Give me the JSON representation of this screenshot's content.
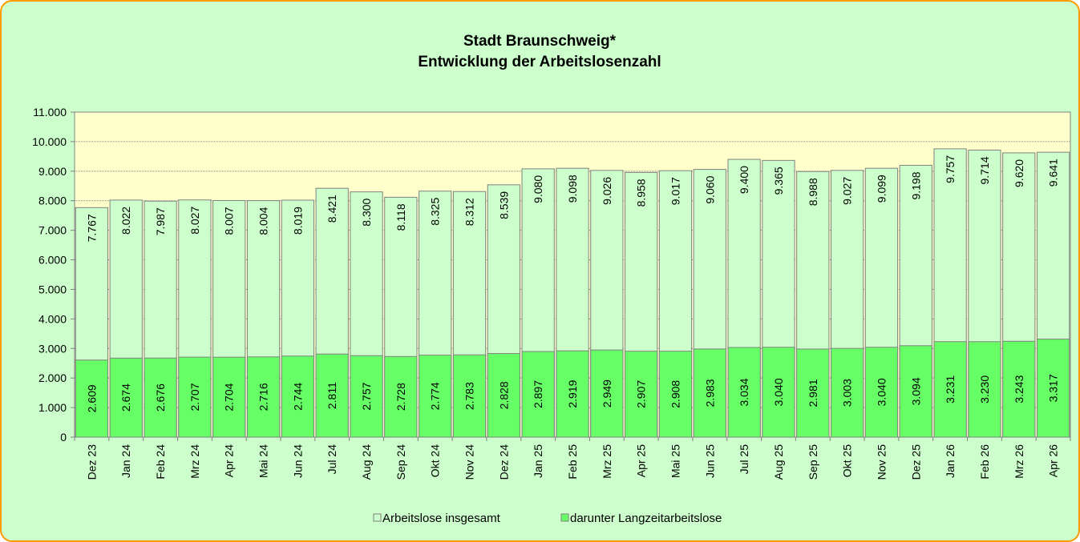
{
  "chart_data": {
    "type": "bar",
    "title": "Stadt Braunschweig*",
    "subtitle": "Entwicklung der Arbeitslosenzahl",
    "categories": [
      "Dez 23",
      "Jan 24",
      "Feb 24",
      "Mrz 24",
      "Apr 24",
      "Mai 24",
      "Jun 24",
      "Jul 24",
      "Aug 24",
      "Sep 24",
      "Okt 24",
      "Nov 24",
      "Dez 24",
      "Jan 25",
      "Feb 25",
      "Mrz 25",
      "Apr 25",
      "Mai 25",
      "Jun 25",
      "Jul 25",
      "Aug 25",
      "Sep 25",
      "Okt 25",
      "Nov 25",
      "Dez 25",
      "Jan 26",
      "Feb 26",
      "Mrz 26",
      "Apr 26"
    ],
    "series": [
      {
        "name": "Arbeitslose insgesamt",
        "color": "#ccffcc",
        "values": [
          7767,
          8022,
          7987,
          8027,
          8007,
          8004,
          8019,
          8421,
          8300,
          8118,
          8325,
          8312,
          8539,
          9080,
          9098,
          9026,
          8958,
          9017,
          9060,
          9400,
          9365,
          8988,
          9027,
          9099,
          9198,
          9757,
          9714,
          9620,
          9641
        ],
        "value_labels": [
          "7.767",
          "8.022",
          "7.987",
          "8.027",
          "8.007",
          "8.004",
          "8.019",
          "8.421",
          "8.300",
          "8.118",
          "8.325",
          "8.312",
          "8.539",
          "9.080",
          "9.098",
          "9.026",
          "8.958",
          "9.017",
          "9.060",
          "9.400",
          "9.365",
          "8.988",
          "9.027",
          "9.099",
          "9.198",
          "9.757",
          "9.714",
          "9.620",
          "9.641"
        ]
      },
      {
        "name": "darunter Langzeitarbeitslose",
        "color": "#66ff66",
        "values": [
          2609,
          2674,
          2676,
          2707,
          2704,
          2716,
          2744,
          2811,
          2757,
          2728,
          2774,
          2783,
          2828,
          2897,
          2919,
          2949,
          2907,
          2908,
          2983,
          3034,
          3040,
          2981,
          3003,
          3040,
          3094,
          3231,
          3230,
          3243,
          3317
        ],
        "value_labels": [
          "2.609",
          "2.674",
          "2.676",
          "2.707",
          "2.704",
          "2.716",
          "2.744",
          "2.811",
          "2.757",
          "2.728",
          "2.774",
          "2.783",
          "2.828",
          "2.897",
          "2.919",
          "2.949",
          "2.907",
          "2.908",
          "2.983",
          "3.034",
          "3.040",
          "2.981",
          "3.003",
          "3.040",
          "3.094",
          "3.231",
          "3.230",
          "3.243",
          "3.317"
        ]
      }
    ],
    "ylim": [
      0,
      11000
    ],
    "yticks": [
      0,
      {
        "value": 1000,
        "label": "1.000"
      },
      {
        "value": 2000,
        "label": "2.000"
      },
      {
        "value": 3000,
        "label": "3.000"
      },
      {
        "value": 4000,
        "label": "4.000"
      },
      {
        "value": 5000,
        "label": "5.000"
      },
      {
        "value": 6000,
        "label": "6.000"
      },
      {
        "value": 7000,
        "label": "7.000"
      },
      {
        "value": 8000,
        "label": "8.000"
      },
      {
        "value": 9000,
        "label": "9.000"
      },
      {
        "value": 10000,
        "label": "10.000"
      },
      {
        "value": 11000,
        "label": "11.000"
      }
    ],
    "grid": true,
    "legend": "bottom"
  }
}
